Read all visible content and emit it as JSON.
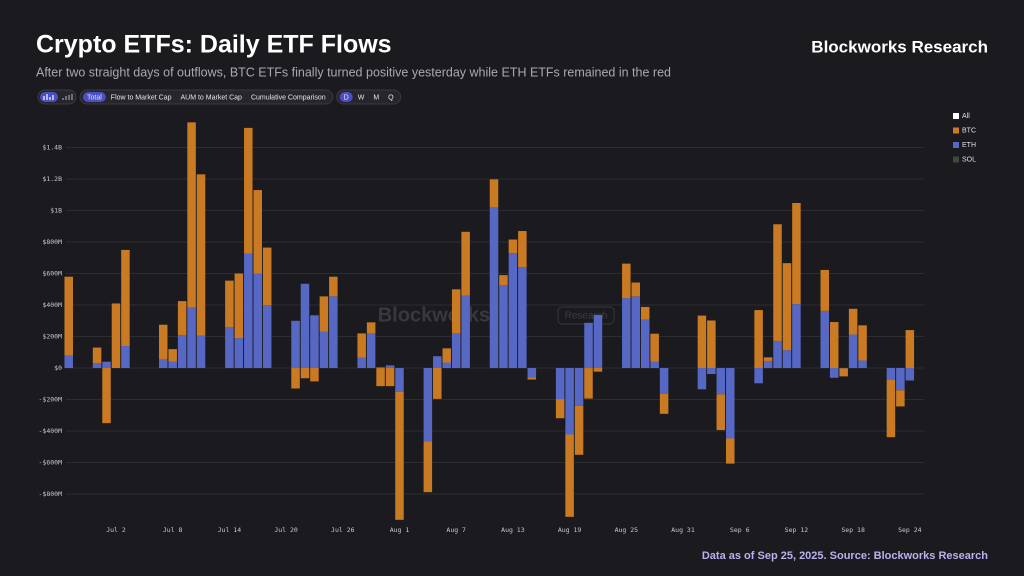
{
  "header": {
    "title": "Crypto ETFs: Daily ETF Flows",
    "subtitle": "After two straight days of outflows, BTC ETFs finally turned positive yesterday while ETH ETFs remained in the red",
    "brand": "Blockworks Research"
  },
  "controls": {
    "views": [
      "Total",
      "Flow to Market Cap",
      "AUM to Market Cap",
      "Cumulative Comparison"
    ],
    "active_view": 0,
    "periods": [
      "D",
      "W",
      "M",
      "Q"
    ],
    "active_period": 0
  },
  "watermark": {
    "name": "Blockworks",
    "tag": "Research"
  },
  "chart_data": {
    "type": "bar",
    "stacked": true,
    "categories": [
      null,
      null,
      null,
      null,
      null,
      "Jul 2",
      null,
      null,
      null,
      null,
      null,
      "Jul 8",
      null,
      null,
      null,
      null,
      null,
      "Jul 14",
      null,
      null,
      null,
      null,
      null,
      "Jul 20",
      null,
      null,
      null,
      null,
      null,
      "Jul 26",
      null,
      null,
      null,
      null,
      null,
      "Aug 1",
      null,
      null,
      null,
      null,
      null,
      "Aug 7",
      null,
      null,
      null,
      null,
      null,
      "Aug 13",
      null,
      null,
      null,
      null,
      null,
      "Aug 19",
      null,
      null,
      null,
      null,
      null,
      "Aug 25",
      null,
      null,
      null,
      null,
      null,
      "Aug 31",
      null,
      null,
      null,
      null,
      null,
      "Sep 6",
      null,
      null,
      null,
      null,
      null,
      "Sep 12",
      null,
      null,
      null,
      null,
      null,
      "Sep 18",
      null,
      null,
      null,
      null,
      null,
      "Sep 24",
      null
    ],
    "series": [
      {
        "name": "BTC",
        "color": "#c97a22",
        "values": [
          500,
          null,
          null,
          100,
          -350,
          410,
          610,
          null,
          null,
          null,
          220,
          80,
          215,
          1175,
          1025,
          null,
          null,
          295,
          410,
          800,
          530,
          365,
          null,
          null,
          -130,
          -65,
          -85,
          225,
          125,
          null,
          null,
          155,
          70,
          -115,
          -115,
          -812,
          null,
          null,
          -323,
          -196,
          90,
          280,
          405,
          null,
          null,
          178,
          65,
          86,
          230,
          -14,
          null,
          null,
          -122,
          -523,
          -311,
          -194,
          -23,
          null,
          null,
          219,
          88,
          81,
          179,
          -126,
          null,
          null,
          null,
          333,
          302,
          -227,
          -160,
          null,
          null,
          368,
          23,
          741,
          553,
          642,
          null,
          null,
          260,
          292,
          -51,
          163,
          223,
          null,
          null,
          -363,
          -103,
          241,
          null
        ]
      },
      {
        "name": "ETH",
        "color": "#5668c4",
        "values": [
          80,
          null,
          null,
          30,
          40,
          0,
          140,
          null,
          null,
          null,
          55,
          40,
          210,
          385,
          205,
          null,
          null,
          260,
          190,
          725,
          600,
          400,
          null,
          null,
          300,
          535,
          335,
          230,
          455,
          null,
          null,
          65,
          220,
          5,
          17,
          -152,
          null,
          null,
          -465,
          75,
          35,
          220,
          460,
          null,
          null,
          1020,
          525,
          730,
          640,
          -59,
          null,
          null,
          -197,
          -422,
          -240,
          287,
          337,
          null,
          null,
          444,
          455,
          307,
          39,
          -165,
          null,
          null,
          null,
          -135,
          -38,
          -167,
          -447,
          null,
          null,
          -97,
          45,
          172,
          113,
          406,
          null,
          null,
          363,
          -62,
          -2,
          213,
          48,
          null,
          null,
          -76,
          -141,
          -79,
          null
        ]
      }
    ],
    "legend_extra": {
      "first": {
        "name": "All",
        "color": "#ffffff"
      },
      "last": {
        "name": "SOL",
        "color": "#3b4a3b"
      }
    },
    "ylim": [
      -965,
      1575
    ],
    "yticks": [
      {
        "value": -800,
        "label": "-$800M"
      },
      {
        "value": -600,
        "label": "-$600M"
      },
      {
        "value": -400,
        "label": "-$400M"
      },
      {
        "value": -200,
        "label": "-$200M"
      },
      {
        "value": 0,
        "label": "$0"
      },
      {
        "value": 200,
        "label": "$200M"
      },
      {
        "value": 400,
        "label": "$400M"
      },
      {
        "value": 600,
        "label": "$600M"
      },
      {
        "value": 800,
        "label": "$800M"
      },
      {
        "value": 1000,
        "label": "$1B"
      },
      {
        "value": 1200,
        "label": "$1.2B"
      },
      {
        "value": 1400,
        "label": "$1.4B"
      }
    ],
    "grid": true
  },
  "footer": {
    "note": "Data as of Sep 25, 2025. Source: Blockworks Research"
  }
}
